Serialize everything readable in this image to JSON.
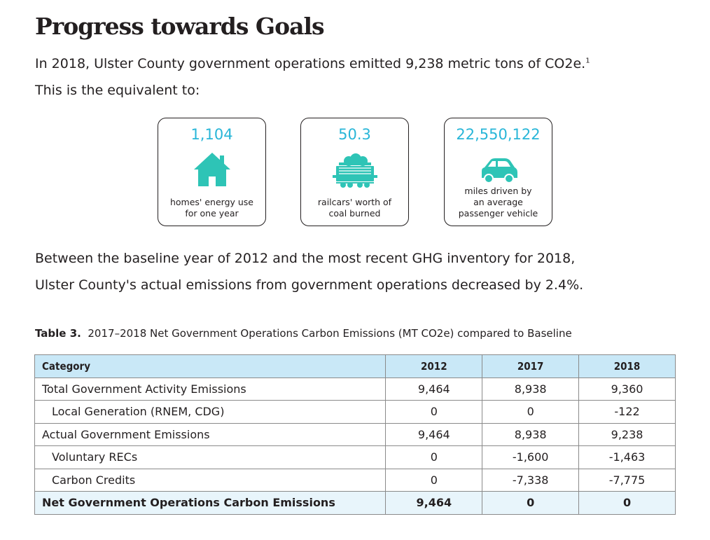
{
  "title": "Progress towards Goals",
  "intro": {
    "line1": "In 2018, Ulster County government operations emitted 9,238 metric tons of CO2e.",
    "footnote": "1",
    "line2": "This is the equivalent to:"
  },
  "cards": [
    {
      "value": "1,104",
      "icon": "house-icon",
      "desc_line1": "homes' energy use",
      "desc_line2": "for one year",
      "desc_line3": ""
    },
    {
      "value": "50.3",
      "icon": "coal-railcar-icon",
      "desc_line1": "railcars' worth of",
      "desc_line2": "coal burned",
      "desc_line3": ""
    },
    {
      "value": "22,550,122",
      "icon": "car-icon",
      "desc_line1": "miles driven by",
      "desc_line2": "an average",
      "desc_line3": "passenger vehicle"
    }
  ],
  "colors": {
    "accent": "#29b6d8",
    "icon": "#2ec4b6",
    "header_bg": "#c9e8f7",
    "total_bg": "#e8f5fb"
  },
  "paragraph": {
    "line1": "Between the baseline year of 2012 and the most recent GHG inventory for 2018,",
    "line2": "Ulster County's actual emissions from government operations decreased by 2.4%."
  },
  "table": {
    "caption_label": "Table 3.",
    "caption_text": "2017–2018 Net Government Operations Carbon Emissions (MT CO2e) compared to Baseline",
    "headers": [
      "Category",
      "2012",
      "2017",
      "2018"
    ],
    "rows": [
      {
        "label": "Total Government Activity Emissions",
        "values": [
          "9,464",
          "8,938",
          "9,360"
        ]
      },
      {
        "label": "Local Generation (RNEM, CDG)",
        "values": [
          "0",
          "0",
          "-122"
        ]
      },
      {
        "label": "Actual Government Emissions",
        "values": [
          "9,464",
          "8,938",
          "9,238"
        ]
      },
      {
        "label": "Voluntary RECs",
        "values": [
          "0",
          "-1,600",
          "-1,463"
        ]
      },
      {
        "label": "Carbon Credits",
        "values": [
          "0",
          "-7,338",
          "-7,775"
        ]
      },
      {
        "label": "Net Government Operations Carbon Emissions",
        "values": [
          "9,464",
          "0",
          "0"
        ]
      }
    ]
  }
}
